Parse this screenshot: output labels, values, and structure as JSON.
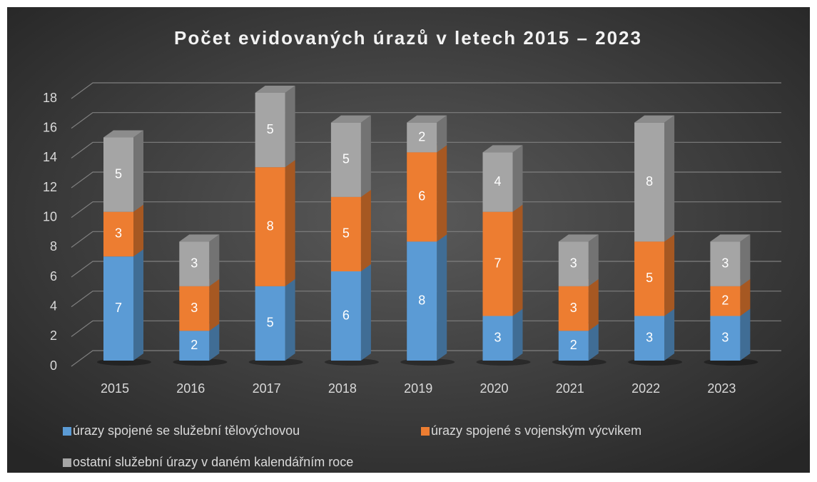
{
  "chart_data": {
    "type": "bar",
    "stacked": true,
    "title": "Počet evidovaných úrazů v letech 2015 – 2023",
    "categories": [
      "2015",
      "2016",
      "2017",
      "2018",
      "2019",
      "2020",
      "2021",
      "2022",
      "2023"
    ],
    "series": [
      {
        "name": "úrazy spojené se služební tělovýchovou",
        "color": "#5b9bd5",
        "values": [
          7,
          2,
          5,
          6,
          8,
          3,
          2,
          3,
          3
        ]
      },
      {
        "name": "úrazy spojené s vojenským výcvikem",
        "color": "#ed7d31",
        "values": [
          3,
          3,
          8,
          5,
          6,
          7,
          3,
          5,
          2
        ]
      },
      {
        "name": "ostatní služební úrazy v daném kalendářním roce",
        "color": "#a5a5a5",
        "values": [
          5,
          3,
          5,
          5,
          2,
          4,
          3,
          8,
          3
        ]
      }
    ],
    "ylim": [
      0,
      18
    ],
    "yticks": [
      0,
      2,
      4,
      6,
      8,
      10,
      12,
      14,
      16,
      18
    ],
    "grid": true,
    "legend": "bottom"
  }
}
